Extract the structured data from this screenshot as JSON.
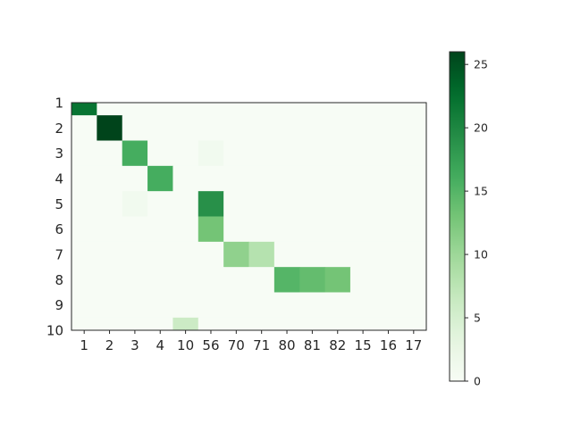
{
  "chart_data": {
    "type": "heatmap",
    "title": "",
    "xlabel": "",
    "ylabel": "",
    "x_categories": [
      "1",
      "2",
      "3",
      "4",
      "10",
      "56",
      "70",
      "71",
      "80",
      "81",
      "82",
      "15",
      "16",
      "17"
    ],
    "y_categories": [
      "1",
      "2",
      "3",
      "4",
      "5",
      "6",
      "7",
      "8",
      "9",
      "10"
    ],
    "values": [
      [
        22,
        0,
        0,
        0,
        0,
        0,
        0,
        0,
        0,
        0,
        0,
        0,
        0,
        0
      ],
      [
        0,
        26,
        0,
        0,
        0,
        0,
        0,
        0,
        0,
        0,
        0,
        0,
        0,
        0
      ],
      [
        0,
        0,
        16,
        0,
        0,
        1,
        0,
        0,
        0,
        0,
        0,
        0,
        0,
        0
      ],
      [
        0,
        0,
        0,
        16,
        0,
        0,
        0,
        0,
        0,
        0,
        0,
        0,
        0,
        0
      ],
      [
        0,
        0,
        1,
        0,
        0,
        19,
        0,
        0,
        0,
        0,
        0,
        0,
        0,
        0
      ],
      [
        0,
        0,
        0,
        0,
        0,
        13,
        0,
        0,
        0,
        0,
        0,
        0,
        0,
        0
      ],
      [
        0,
        0,
        0,
        0,
        0,
        0,
        11,
        8,
        0,
        0,
        0,
        0,
        0,
        0
      ],
      [
        0,
        0,
        0,
        0,
        0,
        0,
        0,
        0,
        15,
        14,
        13,
        0,
        0,
        0
      ],
      [
        0,
        0,
        0,
        0,
        0,
        0,
        0,
        0,
        0,
        0,
        0,
        0,
        0,
        0
      ],
      [
        0,
        0,
        0,
        0,
        6,
        0,
        0,
        0,
        0,
        0,
        0,
        0,
        0,
        0
      ]
    ],
    "colormap": "Greens",
    "colorbar": {
      "range": [
        0,
        26
      ],
      "ticks": [
        "0",
        "5",
        "10",
        "15",
        "20",
        "25"
      ]
    },
    "grid": false
  }
}
